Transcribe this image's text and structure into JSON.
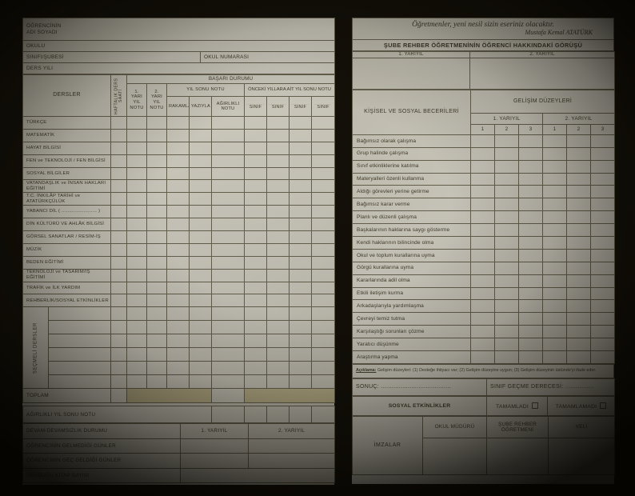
{
  "left_form": {
    "student_info": {
      "owner_label": "ÖĞRENCİNİN",
      "name_label": "ADI SOYADI",
      "school_label": "OKULU",
      "class_label": "SINIFI/ŞUBESİ",
      "number_label": "OKUL NUMARASI",
      "year_label": "DERS YILI"
    },
    "grades_table": {
      "courses_header": "DERSLER",
      "weekly_hours_header": "HAFTALIK DERS SAATİ",
      "success_header": "BAŞARI DURUMU",
      "sem1_header": "1. YARI YIL NOTU",
      "sem2_header": "2. YARI YIL NOTU",
      "year_end_header": "YIL SONU NOTU",
      "previous_years_header": "ÖNCEKİ YILLARA AİT YIL SONU NOTU",
      "numeric_header": "RAKAMLA",
      "written_header": "YAZIYLA",
      "weighted_header": "AĞIRLIKLI NOTU",
      "class_dots": "..........",
      "class_header": "SINIF",
      "courses": [
        "TÜRKÇE",
        "MATEMATİK",
        "HAYAT BİLGİSİ",
        "FEN ve TEKNOLOJİ / FEN BİLGİSİ",
        "SOSYAL BİLGİLER",
        "VATANDAŞLIK ve İNSAN HAKLARI EĞİTİMİ",
        "T.C. İNKILÂP TARİHİ ve ATATÜRKÇÜLÜK",
        "YABANCI DİL ( ........................ )",
        "DİN KÜLTÜRÜ VE AHLÂK BİLGİSİ",
        "GÖRSEL SANATLAR / RESİM-İŞ",
        "MÜZİK",
        "BEDEN EĞİTİMİ",
        "TEKNOLOJİ ve TASARIM/İŞ EĞİTİMİ",
        "TRAFİK ve İLK YARDIM",
        "REHBERLİK/SOSYAL ETKİNLİKLER"
      ],
      "electives_label": "SEÇMELİ DERSLER",
      "total_label": "TOPLAM",
      "weighted_year_end_label": "AĞIRLIKLI YIL SONU NOTU"
    },
    "attendance": {
      "title": "DEVAM-DEVAMSIZLIK DURUMU",
      "sem1_header": "1. YARIYIL",
      "sem2_header": "2. YARIYIL",
      "row1": "ÖĞRENCİNİN GELMEDİĞİ GÜNLER",
      "row2": "ÖĞRENCİNİN GEÇ GELDİĞİ GÜNLER",
      "row3": "OKUDUĞU KİTAP SAYISI"
    }
  },
  "right_form": {
    "quote": {
      "text": "Öğretmenler, yeni nesil sizin eseriniz olacaktır.",
      "author": "Mustafa Kemal ATATÜRK"
    },
    "opinion": {
      "title": "ŞUBE REHBER ÖĞRETMENİNİN ÖĞRENCİ HAKKINDAKİ GÖRÜŞÜ",
      "sem1_header": "1. YARIYIL",
      "sem2_header": "2. YARIYIL"
    },
    "skills_table": {
      "title": "KİŞİSEL VE SOSYAL BECERİLERİ",
      "levels_header": "GELİŞİM DÜZEYLERİ",
      "sem1_header": "1. YARIYIL",
      "sem2_header": "2. YARIYIL",
      "level_cols": [
        "1",
        "2",
        "3",
        "1",
        "2",
        "3"
      ],
      "skills": [
        "Bağımsız olarak çalışma",
        "Grup halinde çalışma",
        "Sınıf etkinliklerine katılma",
        "Materyalleri özenli kullanma",
        "Aldığı görevleri yerine getirme",
        "Bağımsız karar verme",
        "Planlı ve düzenli çalışma",
        "Başkalarının haklarına saygı gösterme",
        "Kendi haklarının bilincinde olma",
        "Okul ve toplum kurallarına uyma",
        "Görgü kurallarına uyma",
        "Kararlarında adil olma",
        "Etkili iletişim kurma",
        "Arkadaşlarıyla yardımlaşma",
        "Çevreyi temiz tutma",
        "Karşılaştığı sorunları çözme",
        "Yaratıcı düşünme",
        "Araştırma yapma"
      ],
      "note_label": "Açıklama:",
      "note_text": "Gelişim düzeyleri: (1) Desteğe ihtiyacı var; (2) Gelişim düzeyine uygun; (3) Gelişim düzeyinin üstünde'yi ifade eder."
    },
    "result": {
      "result_label": "SONUÇ: .......................................",
      "grade_label": "SINIF GEÇME DERECESİ: ................"
    },
    "social_activities": {
      "title": "SOSYAL ETKİNLİKLER",
      "completed_label": "TAMAMLADI",
      "not_completed_label": "TAMAMLAMADI"
    },
    "signatures": {
      "title": "İMZALAR",
      "principal": "OKUL MÜDÜRÜ",
      "guidance_teacher": "ŞUBE REHBER ÖĞRETMENİ",
      "parent": "VELİ"
    }
  }
}
